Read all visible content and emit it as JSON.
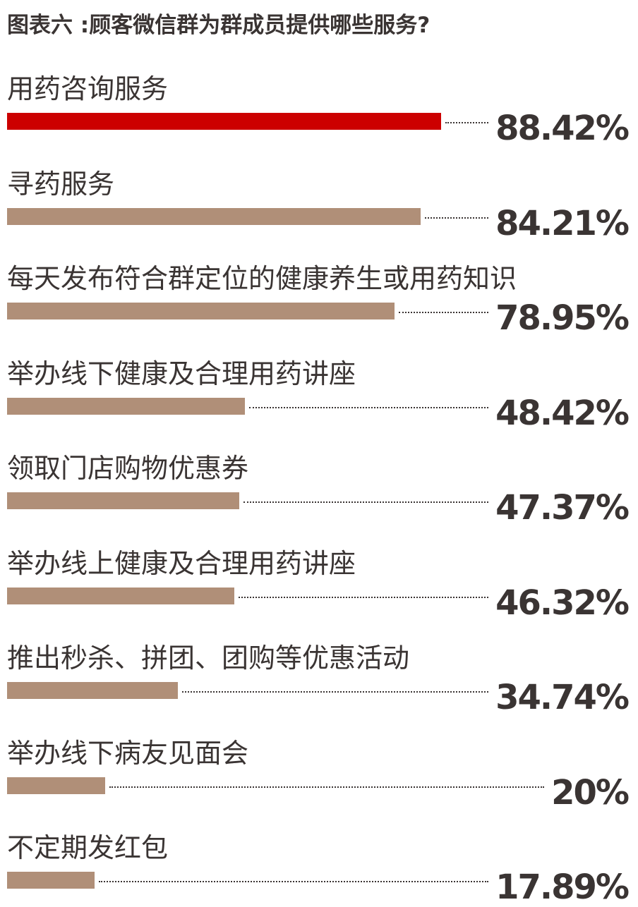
{
  "chart_data": {
    "type": "bar",
    "orientation": "horizontal",
    "title": "图表六 :顾客微信群为群成员提供哪些服务?",
    "categories": [
      "用药咨询服务",
      "寻药服务",
      "每天发布符合群定位的健康养生或用药知识",
      "举办线下健康及合理用药讲座",
      "领取门店购物优惠券",
      "举办线上健康及合理用药讲座",
      "推出秒杀、拼团、团购等优惠活动",
      "举办线下病友见面会",
      "不定期发红包"
    ],
    "values": [
      88.42,
      84.21,
      78.95,
      48.42,
      47.37,
      46.32,
      34.74,
      20,
      17.89
    ],
    "value_labels": [
      "88.42%",
      "84.21%",
      "78.95%",
      "48.42%",
      "47.37%",
      "46.32%",
      "34.74%",
      "20%",
      "17.89%"
    ],
    "unit": "%",
    "grid": false,
    "colors": {
      "highlight": "#cc0000",
      "default": "#b08f78",
      "text": "#3a3433"
    }
  }
}
